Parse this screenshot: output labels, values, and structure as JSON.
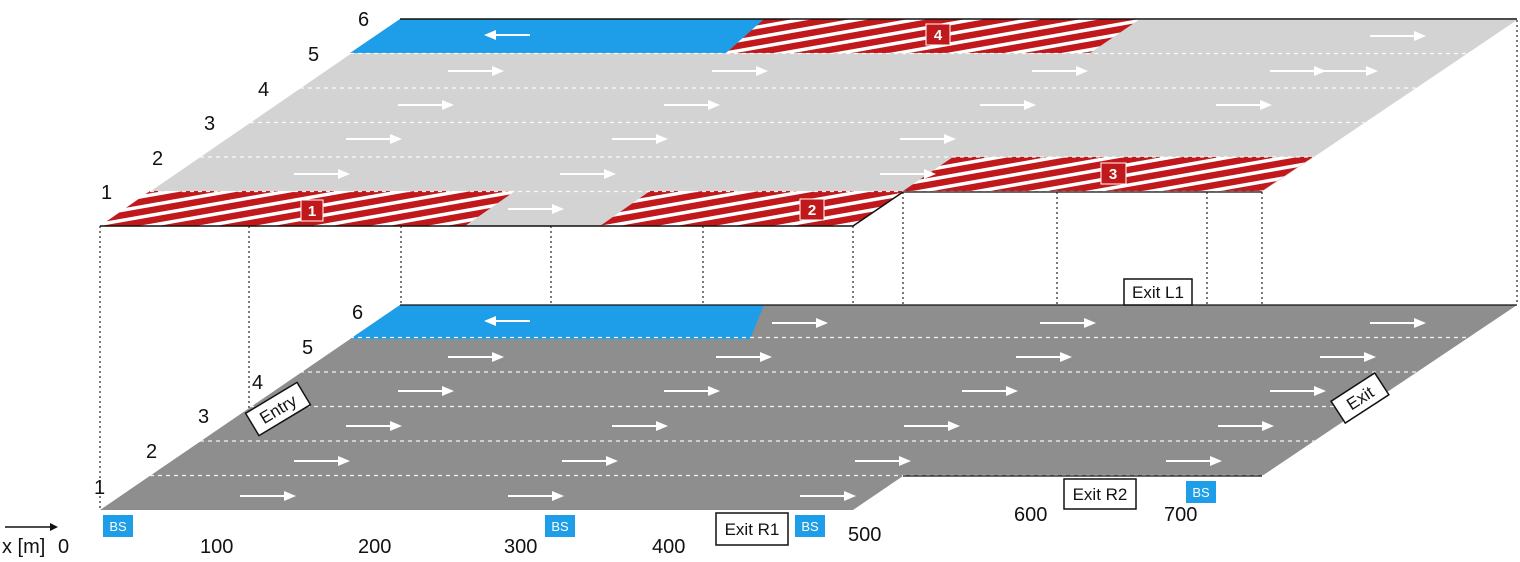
{
  "colors": {
    "upper_deck": "#d3d3d3",
    "lower_deck": "#8e8e8e",
    "opposite_lane": "#1e9ee8",
    "hatch_red": "#c0181b",
    "bs_badge": "#1e9ee8",
    "zone_badge": "#c0181b"
  },
  "lane_numbers": [
    "1",
    "2",
    "3",
    "4",
    "5",
    "6"
  ],
  "axis": {
    "label": "x [m]",
    "ticks": [
      "0",
      "100",
      "200",
      "300",
      "400",
      "500",
      "600",
      "700"
    ]
  },
  "zones": [
    {
      "id": "zone-1",
      "label": "1"
    },
    {
      "id": "zone-2",
      "label": "2"
    },
    {
      "id": "zone-3",
      "label": "3"
    },
    {
      "id": "zone-4",
      "label": "4"
    }
  ],
  "labels": {
    "entry": "Entry",
    "exit": "Exit",
    "exit_l1": "Exit L1",
    "exit_r1": "Exit R1",
    "exit_r2": "Exit R2",
    "bs": "BS"
  },
  "icons": {
    "lane_arrow": "arrow-right-icon",
    "opposite_arrow": "arrow-left-icon",
    "axis_arrow": "axis-arrow-icon"
  }
}
